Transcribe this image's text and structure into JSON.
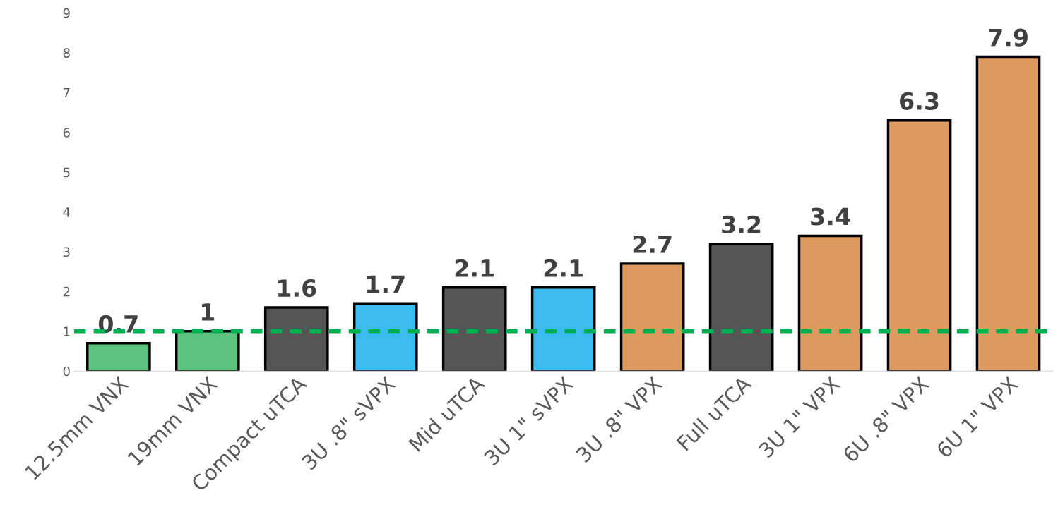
{
  "chart_data": {
    "type": "bar",
    "categories": [
      "12.5mm VNX",
      "19mm VNX",
      "Compact uTCA",
      "3U .8\" sVPX",
      "Mid uTCA",
      "3U 1\" sVPX",
      "3U .8\" VPX",
      "Full uTCA",
      "3U 1\" VPX",
      "6U .8\" VPX",
      "6U 1\" VPX"
    ],
    "values": [
      0.7,
      1,
      1.6,
      1.7,
      2.1,
      2.1,
      2.7,
      3.2,
      3.4,
      6.3,
      7.9
    ],
    "colors": [
      "#5cc47f",
      "#5cc47f",
      "#555555",
      "#3bbcf0",
      "#555555",
      "#3bbcf0",
      "#dc9a5e",
      "#555555",
      "#dc9a5e",
      "#dc9a5e",
      "#dc9a5e"
    ],
    "data_labels": true,
    "ylim": [
      0,
      9
    ],
    "yticks": [
      0,
      1,
      2,
      3,
      4,
      5,
      6,
      7,
      8,
      9
    ],
    "grid": false,
    "legend": false,
    "ref_lines": [
      {
        "axis": "y",
        "value": 1,
        "color": "#00b050",
        "line_style": "dashed"
      }
    ]
  }
}
